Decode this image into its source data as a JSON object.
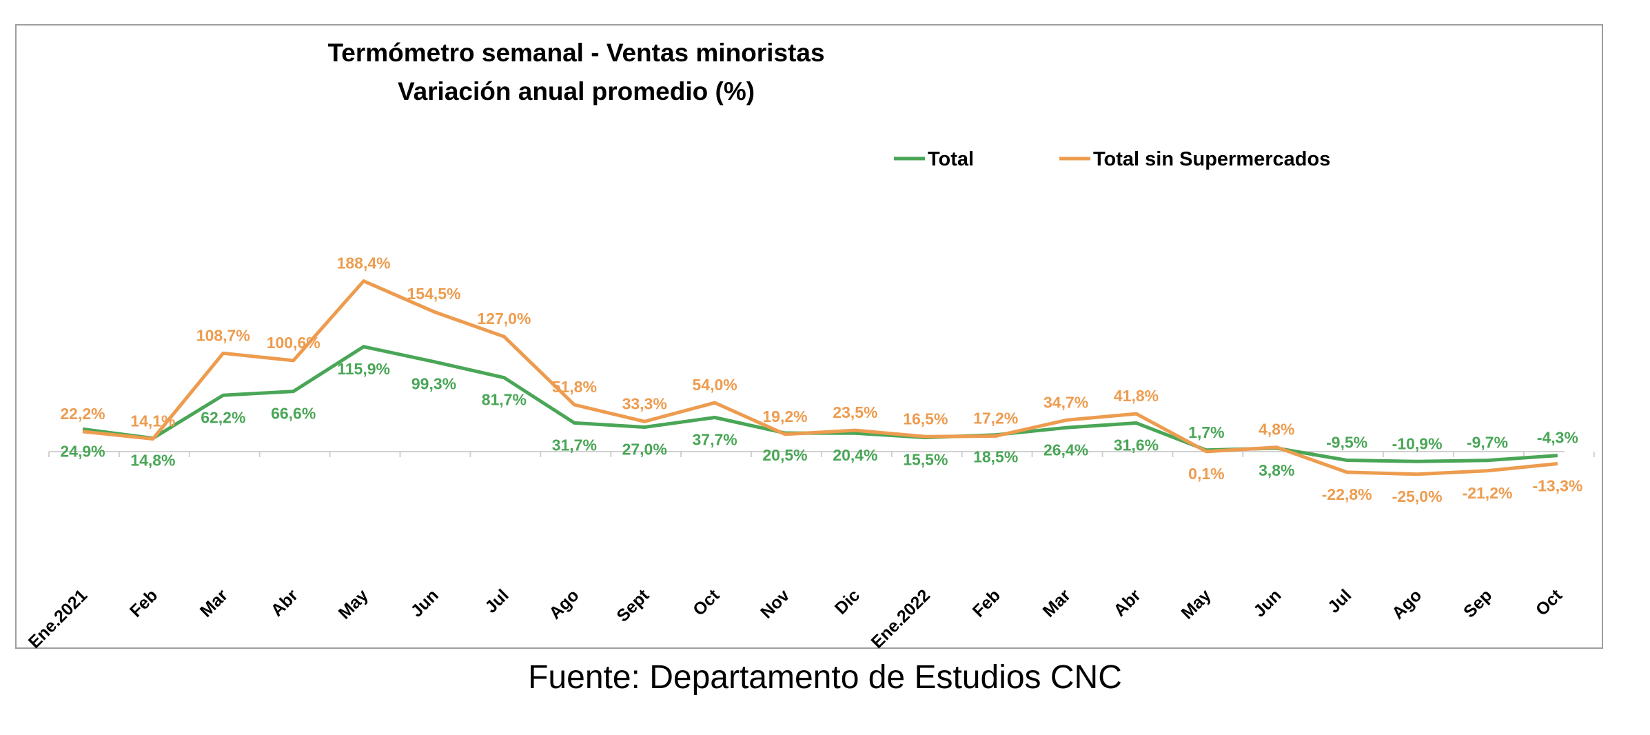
{
  "chart_data": {
    "type": "line",
    "title": "Termómetro semanal - Ventas minoristas",
    "subtitle": "Variación anual promedio (%)",
    "categories": [
      "Ene.2021",
      "Feb",
      "Mar",
      "Abr",
      "May",
      "Jun",
      "Jul",
      "Ago",
      "Sept",
      "Oct",
      "Nov",
      "Dic",
      "Ene.2022",
      "Feb",
      "Mar",
      "Abr",
      "May",
      "Jun",
      "Jul",
      "Ago",
      "Sep",
      "Oct"
    ],
    "series": [
      {
        "name": "Total",
        "color": "#4aa657",
        "values": [
          24.9,
          14.8,
          62.2,
          66.6,
          115.9,
          99.3,
          81.7,
          31.7,
          27.0,
          37.7,
          20.5,
          20.4,
          15.5,
          18.5,
          26.4,
          31.6,
          1.7,
          3.8,
          -9.5,
          -10.9,
          -9.7,
          -4.3
        ],
        "labels": [
          "24,9%",
          "14,8%",
          "62,2%",
          "66,6%",
          "115,9%",
          "99,3%",
          "81,7%",
          "31,7%",
          "27,0%",
          "37,7%",
          "20,5%",
          "20,4%",
          "15,5%",
          "18,5%",
          "26,4%",
          "31,6%",
          "1,7%",
          "3,8%",
          "-9,5%",
          "-10,9%",
          "-9,7%",
          "-4,3%"
        ]
      },
      {
        "name": "Total sin Supermercados",
        "color": "#ed9c4f",
        "values": [
          22.2,
          14.1,
          108.7,
          100.6,
          188.4,
          154.5,
          127.0,
          51.8,
          33.3,
          54.0,
          19.2,
          23.5,
          16.5,
          17.2,
          34.7,
          41.8,
          0.1,
          4.8,
          -22.8,
          -25.0,
          -21.2,
          -13.3
        ],
        "labels": [
          "22,2%",
          "14,1%",
          "108,7%",
          "100,6%",
          "188,4%",
          "154,5%",
          "127,0%",
          "51,8%",
          "33,3%",
          "54,0%",
          "19,2%",
          "23,5%",
          "16,5%",
          "17,2%",
          "34,7%",
          "41,8%",
          "0,1%",
          "4,8%",
          "-22,8%",
          "-25,0%",
          "-21,2%",
          "-13,3%"
        ]
      }
    ],
    "ylim": [
      -100,
      250
    ],
    "grid": false,
    "legend_position": "top-right"
  },
  "source": "Fuente: Departamento de Estudios CNC"
}
